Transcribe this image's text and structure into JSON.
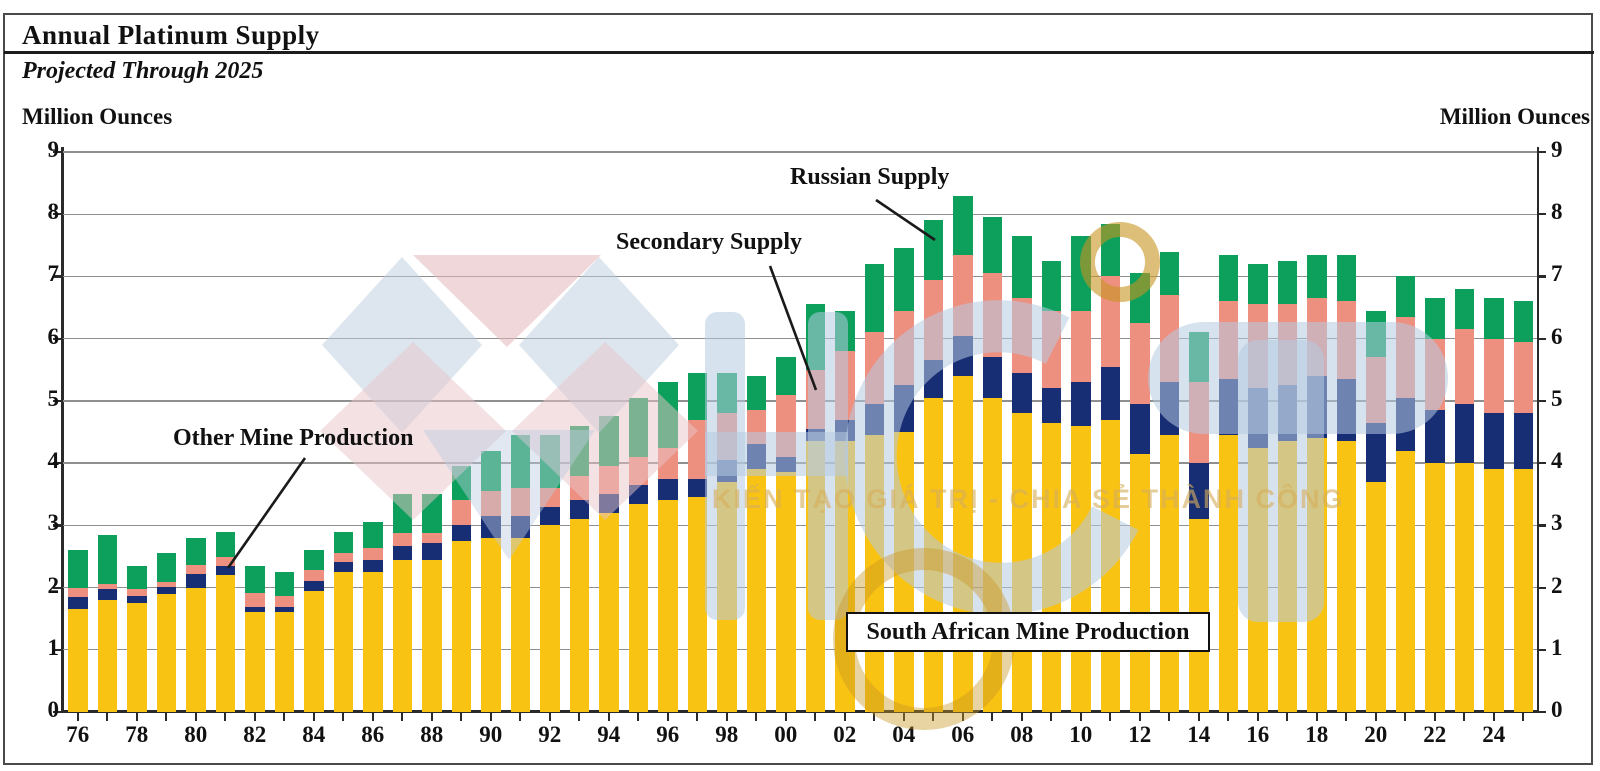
{
  "page": {
    "title": "Annual Platinum Supply",
    "subtitle": "Projected Through 2025",
    "unit_label_left": "Million Ounces",
    "unit_label_right": "Million Ounces"
  },
  "annotations": {
    "russian": "Russian Supply",
    "secondary": "Secondary Supply",
    "other": "Other Mine Production",
    "south_african": "South African Mine Production"
  },
  "watermark": {
    "slogan": "KIẾN TẠO GIÁ TRỊ - CHIA SẺ THÀNH CÔNG"
  },
  "colors": {
    "south_african": "#F9C314",
    "other_mine": "#182E74",
    "secondary": "#EE9080",
    "russian": "#0DA05C",
    "gridline": "#8f8f8f"
  },
  "chart_data": {
    "type": "bar",
    "stacked": true,
    "title": "Annual Platinum Supply",
    "subtitle": "Projected Through 2025",
    "ylabel": "Million Ounces",
    "ylim": [
      0,
      9
    ],
    "yticks": [
      0,
      1,
      2,
      3,
      4,
      5,
      6,
      7,
      8,
      9
    ],
    "grid": true,
    "x": [
      1976,
      1977,
      1978,
      1979,
      1980,
      1981,
      1982,
      1983,
      1984,
      1985,
      1986,
      1987,
      1988,
      1989,
      1990,
      1991,
      1992,
      1993,
      1994,
      1995,
      1996,
      1997,
      1998,
      1999,
      2000,
      2001,
      2002,
      2003,
      2004,
      2005,
      2006,
      2007,
      2008,
      2009,
      2010,
      2011,
      2012,
      2013,
      2014,
      2015,
      2016,
      2017,
      2018,
      2019,
      2020,
      2021,
      2022,
      2023,
      2024,
      2025
    ],
    "x_tick_labels": [
      "76",
      "78",
      "80",
      "82",
      "84",
      "86",
      "88",
      "90",
      "92",
      "94",
      "96",
      "98",
      "00",
      "02",
      "04",
      "06",
      "08",
      "10",
      "12",
      "14",
      "16",
      "18",
      "20",
      "22",
      "24"
    ],
    "series": [
      {
        "name": "South African Mine Production",
        "color": "#F9C314",
        "values": [
          1.65,
          1.8,
          1.75,
          1.9,
          2.0,
          2.2,
          1.6,
          1.6,
          1.95,
          2.25,
          2.25,
          2.45,
          2.45,
          2.75,
          2.8,
          2.8,
          3.0,
          3.1,
          3.2,
          3.35,
          3.4,
          3.45,
          3.7,
          3.9,
          3.85,
          4.35,
          4.35,
          4.45,
          4.5,
          5.05,
          5.4,
          5.05,
          4.8,
          4.65,
          4.6,
          4.7,
          4.15,
          4.45,
          3.1,
          4.45,
          4.25,
          4.35,
          4.4,
          4.35,
          3.7,
          4.2,
          4.0,
          4.0,
          3.9,
          3.9
        ]
      },
      {
        "name": "Other Mine Production",
        "color": "#182E74",
        "values": [
          0.2,
          0.18,
          0.12,
          0.11,
          0.22,
          0.15,
          0.08,
          0.08,
          0.16,
          0.16,
          0.2,
          0.22,
          0.27,
          0.25,
          0.35,
          0.35,
          0.3,
          0.3,
          0.3,
          0.3,
          0.35,
          0.3,
          0.35,
          0.4,
          0.25,
          0.2,
          0.35,
          0.5,
          0.75,
          0.6,
          0.65,
          0.65,
          0.65,
          0.55,
          0.7,
          0.85,
          0.8,
          0.85,
          0.9,
          0.9,
          0.95,
          0.9,
          1.0,
          1.0,
          0.95,
          0.85,
          0.85,
          0.95,
          0.9,
          0.9
        ]
      },
      {
        "name": "Secondary Supply",
        "color": "#EE9080",
        "values": [
          0.15,
          0.08,
          0.11,
          0.08,
          0.14,
          0.14,
          0.24,
          0.19,
          0.17,
          0.14,
          0.18,
          0.21,
          0.15,
          0.4,
          0.4,
          0.45,
          0.3,
          0.4,
          0.45,
          0.45,
          0.5,
          0.95,
          0.75,
          0.55,
          1.0,
          0.95,
          1.1,
          1.15,
          1.2,
          1.3,
          1.3,
          1.35,
          1.2,
          1.25,
          1.15,
          1.45,
          1.3,
          1.4,
          1.3,
          1.25,
          1.35,
          1.3,
          1.25,
          1.25,
          1.05,
          1.3,
          1.15,
          1.2,
          1.2,
          1.15
        ]
      },
      {
        "name": "Russian Supply",
        "color": "#0DA05C",
        "values": [
          0.6,
          0.79,
          0.37,
          0.46,
          0.44,
          0.41,
          0.43,
          0.38,
          0.32,
          0.35,
          0.42,
          0.62,
          0.63,
          0.55,
          0.65,
          0.85,
          0.85,
          0.8,
          0.8,
          0.95,
          1.05,
          0.75,
          0.65,
          0.55,
          0.6,
          1.05,
          0.65,
          1.1,
          1.0,
          0.95,
          0.95,
          0.9,
          1.0,
          0.8,
          1.2,
          0.85,
          0.8,
          0.7,
          0.8,
          0.75,
          0.65,
          0.7,
          0.7,
          0.75,
          0.75,
          0.65,
          0.65,
          0.65,
          0.65,
          0.65
        ]
      }
    ],
    "legend_position": "annotated-on-chart"
  }
}
